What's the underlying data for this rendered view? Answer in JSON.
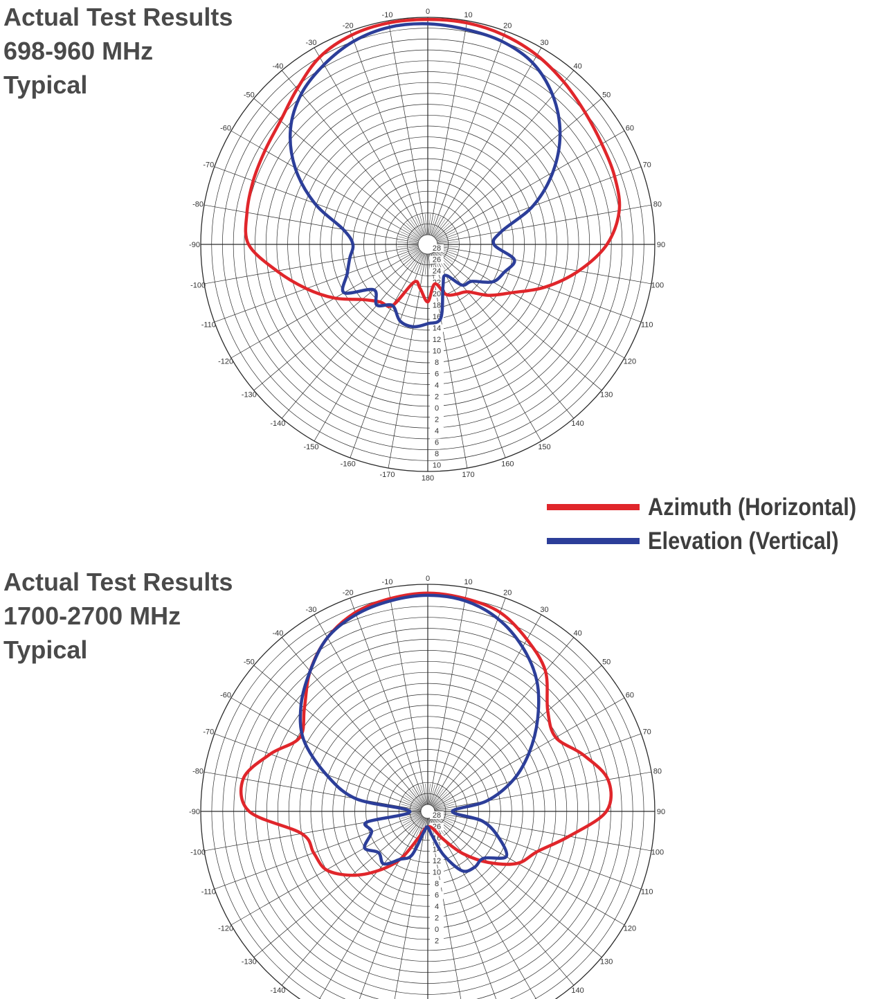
{
  "panels": [
    {
      "title_lines": [
        "Actual Test Results",
        "698-960 MHz",
        "Typical"
      ]
    },
    {
      "title_lines": [
        "Actual Test Results",
        "1700-2700 MHz",
        "Typical"
      ]
    }
  ],
  "legend": {
    "items": [
      {
        "label": "Azimuth (Horizontal)",
        "color": "#e0262b"
      },
      {
        "label": "Elevation (Vertical)",
        "color": "#2c3e99"
      }
    ]
  },
  "chart_data": [
    {
      "type": "line",
      "subtype": "polar",
      "title": "Actual Test Results 698-960 MHz Typical",
      "angle_ticks": [
        -170,
        -160,
        -150,
        -140,
        -130,
        -120,
        -110,
        -100,
        -90,
        -80,
        -70,
        -60,
        -50,
        -40,
        -30,
        -20,
        -10,
        0,
        10,
        20,
        30,
        40,
        50,
        60,
        70,
        80,
        90,
        100,
        110,
        120,
        130,
        140,
        150,
        160,
        170,
        180
      ],
      "radial_ticks": [
        28,
        26,
        24,
        22,
        20,
        18,
        16,
        14,
        12,
        10,
        8,
        6,
        4,
        2,
        0,
        2,
        4,
        6,
        8,
        10
      ],
      "grid": true,
      "series": [
        {
          "name": "Azimuth (Horizontal)",
          "color": "#e0262b",
          "points": [
            {
              "angle": 0,
              "r": 0.99
            },
            {
              "angle": 10,
              "r": 0.99
            },
            {
              "angle": 20,
              "r": 0.98
            },
            {
              "angle": 30,
              "r": 0.96
            },
            {
              "angle": 40,
              "r": 0.93
            },
            {
              "angle": 50,
              "r": 0.9
            },
            {
              "angle": 60,
              "r": 0.88
            },
            {
              "angle": 70,
              "r": 0.87
            },
            {
              "angle": 80,
              "r": 0.85
            },
            {
              "angle": 90,
              "r": 0.78
            },
            {
              "angle": 100,
              "r": 0.66
            },
            {
              "angle": 110,
              "r": 0.53
            },
            {
              "angle": 120,
              "r": 0.4
            },
            {
              "angle": 130,
              "r": 0.32
            },
            {
              "angle": 140,
              "r": 0.24
            },
            {
              "angle": 150,
              "r": 0.22
            },
            {
              "angle": 160,
              "r": 0.2
            },
            {
              "angle": 170,
              "r": 0.14
            },
            {
              "angle": 180,
              "r": 0.22
            },
            {
              "angle": -170,
              "r": 0.16
            },
            {
              "angle": -160,
              "r": 0.14
            },
            {
              "angle": -150,
              "r": 0.28
            },
            {
              "angle": -140,
              "r": 0.3
            },
            {
              "angle": -130,
              "r": 0.35
            },
            {
              "angle": -120,
              "r": 0.45
            },
            {
              "angle": -110,
              "r": 0.55
            },
            {
              "angle": -100,
              "r": 0.66
            },
            {
              "angle": -90,
              "r": 0.78
            },
            {
              "angle": -80,
              "r": 0.8
            },
            {
              "angle": -70,
              "r": 0.81
            },
            {
              "angle": -60,
              "r": 0.82
            },
            {
              "angle": -50,
              "r": 0.84
            },
            {
              "angle": -40,
              "r": 0.89
            },
            {
              "angle": -30,
              "r": 0.95
            },
            {
              "angle": -20,
              "r": 0.98
            },
            {
              "angle": -10,
              "r": 0.99
            }
          ]
        },
        {
          "name": "Elevation (Vertical)",
          "color": "#2c3e99",
          "points": [
            {
              "angle": 0,
              "r": 0.97
            },
            {
              "angle": 10,
              "r": 0.96
            },
            {
              "angle": 20,
              "r": 0.95
            },
            {
              "angle": 30,
              "r": 0.92
            },
            {
              "angle": 40,
              "r": 0.85
            },
            {
              "angle": 50,
              "r": 0.75
            },
            {
              "angle": 60,
              "r": 0.62
            },
            {
              "angle": 70,
              "r": 0.47
            },
            {
              "angle": 80,
              "r": 0.3
            },
            {
              "angle": 90,
              "r": 0.26
            },
            {
              "angle": 100,
              "r": 0.36
            },
            {
              "angle": 110,
              "r": 0.33
            },
            {
              "angle": 120,
              "r": 0.3
            },
            {
              "angle": 130,
              "r": 0.22
            },
            {
              "angle": 140,
              "r": 0.2
            },
            {
              "angle": 150,
              "r": 0.12
            },
            {
              "angle": 160,
              "r": 0.16
            },
            {
              "angle": 170,
              "r": 0.3
            },
            {
              "angle": 180,
              "r": 0.32
            },
            {
              "angle": -170,
              "r": 0.34
            },
            {
              "angle": -160,
              "r": 0.33
            },
            {
              "angle": -150,
              "r": 0.28
            },
            {
              "angle": -140,
              "r": 0.32
            },
            {
              "angle": -130,
              "r": 0.28
            },
            {
              "angle": -120,
              "r": 0.4
            },
            {
              "angle": -110,
              "r": 0.35
            },
            {
              "angle": -100,
              "r": 0.32
            },
            {
              "angle": -90,
              "r": 0.3
            },
            {
              "angle": -80,
              "r": 0.35
            },
            {
              "angle": -70,
              "r": 0.51
            },
            {
              "angle": -60,
              "r": 0.66
            },
            {
              "angle": -50,
              "r": 0.78
            },
            {
              "angle": -40,
              "r": 0.86
            },
            {
              "angle": -30,
              "r": 0.91
            },
            {
              "angle": -20,
              "r": 0.95
            },
            {
              "angle": -10,
              "r": 0.97
            }
          ]
        }
      ]
    },
    {
      "type": "line",
      "subtype": "polar",
      "title": "Actual Test Results 1700-2700 MHz Typical",
      "angle_ticks": [
        -140,
        -130,
        -120,
        -110,
        -100,
        -90,
        -80,
        -70,
        -60,
        -50,
        -40,
        -30,
        -20,
        -10,
        0,
        10,
        20,
        30,
        40,
        50,
        60,
        70,
        80,
        90,
        100,
        110,
        120,
        130,
        140
      ],
      "radial_ticks": [
        28,
        26,
        16,
        14,
        12,
        10,
        8,
        6,
        4,
        2,
        0,
        2
      ],
      "grid": true,
      "series": [
        {
          "name": "Azimuth (Horizontal)",
          "color": "#e0262b",
          "points": [
            {
              "angle": 0,
              "r": 0.96
            },
            {
              "angle": 10,
              "r": 0.95
            },
            {
              "angle": 20,
              "r": 0.93
            },
            {
              "angle": 30,
              "r": 0.87
            },
            {
              "angle": 40,
              "r": 0.8
            },
            {
              "angle": 50,
              "r": 0.68
            },
            {
              "angle": 60,
              "r": 0.64
            },
            {
              "angle": 70,
              "r": 0.72
            },
            {
              "angle": 80,
              "r": 0.8
            },
            {
              "angle": 90,
              "r": 0.78
            },
            {
              "angle": 100,
              "r": 0.62
            },
            {
              "angle": 110,
              "r": 0.5
            },
            {
              "angle": 120,
              "r": 0.44
            },
            {
              "angle": 130,
              "r": 0.33
            },
            {
              "angle": 140,
              "r": 0.22
            },
            {
              "angle": 150,
              "r": 0.12
            },
            {
              "angle": 160,
              "r": 0.06
            },
            {
              "angle": 170,
              "r": 0.04
            },
            {
              "angle": 180,
              "r": 0.04
            },
            {
              "angle": -170,
              "r": 0.05
            },
            {
              "angle": -160,
              "r": 0.1
            },
            {
              "angle": -150,
              "r": 0.22
            },
            {
              "angle": -140,
              "r": 0.32
            },
            {
              "angle": -130,
              "r": 0.42
            },
            {
              "angle": -120,
              "r": 0.5
            },
            {
              "angle": -110,
              "r": 0.52
            },
            {
              "angle": -100,
              "r": 0.55
            },
            {
              "angle": -90,
              "r": 0.78
            },
            {
              "angle": -80,
              "r": 0.82
            },
            {
              "angle": -70,
              "r": 0.73
            },
            {
              "angle": -60,
              "r": 0.64
            },
            {
              "angle": -50,
              "r": 0.7
            },
            {
              "angle": -40,
              "r": 0.8
            },
            {
              "angle": -30,
              "r": 0.88
            },
            {
              "angle": -20,
              "r": 0.93
            },
            {
              "angle": -10,
              "r": 0.95
            }
          ]
        },
        {
          "name": "Elevation (Vertical)",
          "color": "#2c3e99",
          "points": [
            {
              "angle": 0,
              "r": 0.95
            },
            {
              "angle": 10,
              "r": 0.94
            },
            {
              "angle": 20,
              "r": 0.9
            },
            {
              "angle": 30,
              "r": 0.83
            },
            {
              "angle": 40,
              "r": 0.74
            },
            {
              "angle": 50,
              "r": 0.62
            },
            {
              "angle": 60,
              "r": 0.5
            },
            {
              "angle": 70,
              "r": 0.38
            },
            {
              "angle": 80,
              "r": 0.24
            },
            {
              "angle": 90,
              "r": 0.08
            },
            {
              "angle": 100,
              "r": 0.22
            },
            {
              "angle": 110,
              "r": 0.31
            },
            {
              "angle": 120,
              "r": 0.38
            },
            {
              "angle": 130,
              "r": 0.3
            },
            {
              "angle": 140,
              "r": 0.3
            },
            {
              "angle": 150,
              "r": 0.28
            },
            {
              "angle": 160,
              "r": 0.18
            },
            {
              "angle": 170,
              "r": 0.08
            },
            {
              "angle": 180,
              "r": 0.04
            },
            {
              "angle": -170,
              "r": 0.06
            },
            {
              "angle": -160,
              "r": 0.18
            },
            {
              "angle": -150,
              "r": 0.22
            },
            {
              "angle": -140,
              "r": 0.28
            },
            {
              "angle": -130,
              "r": 0.26
            },
            {
              "angle": -120,
              "r": 0.3
            },
            {
              "angle": -110,
              "r": 0.24
            },
            {
              "angle": -100,
              "r": 0.25
            },
            {
              "angle": -90,
              "r": 0.05
            },
            {
              "angle": -80,
              "r": 0.3
            },
            {
              "angle": -70,
              "r": 0.46
            },
            {
              "angle": -60,
              "r": 0.62
            },
            {
              "angle": -50,
              "r": 0.72
            },
            {
              "angle": -40,
              "r": 0.8
            },
            {
              "angle": -30,
              "r": 0.88
            },
            {
              "angle": -20,
              "r": 0.92
            },
            {
              "angle": -10,
              "r": 0.94
            }
          ]
        }
      ]
    }
  ]
}
